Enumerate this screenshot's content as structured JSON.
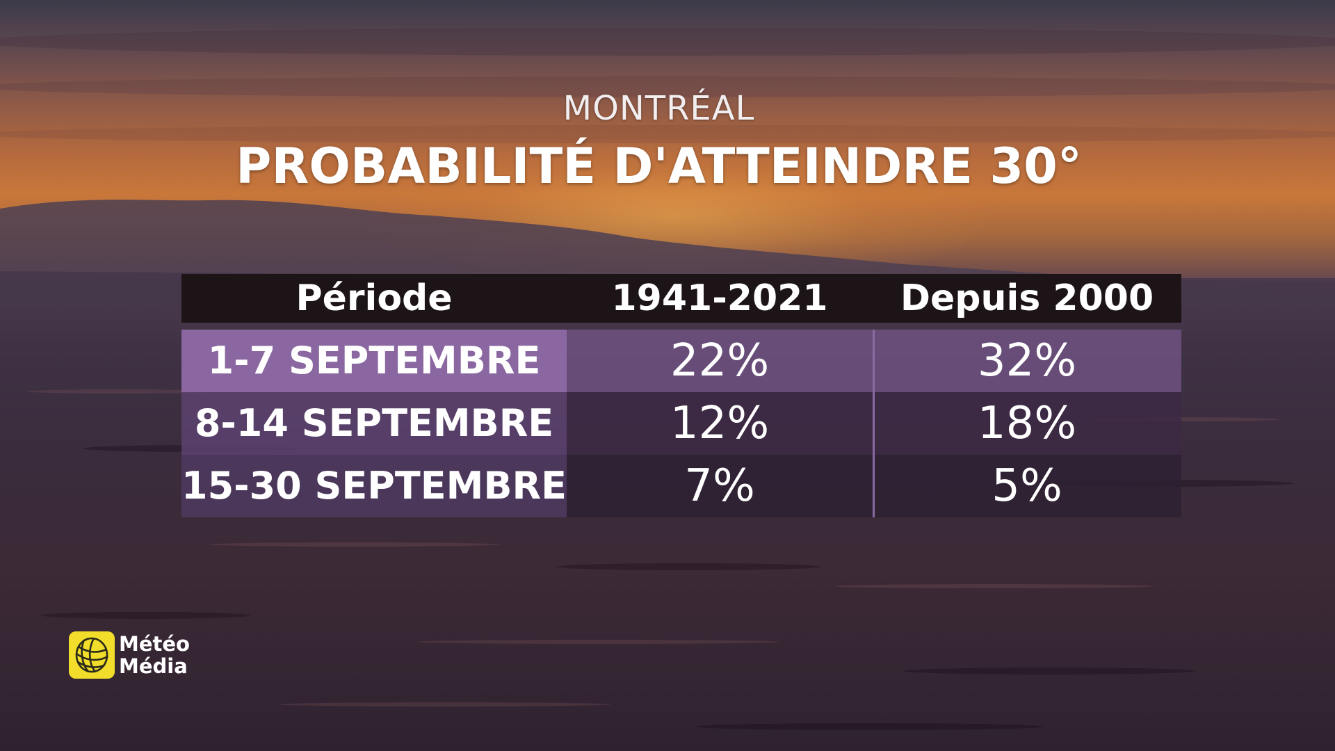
{
  "header": {
    "subtitle": "MONTRÉAL",
    "title": "PROBABILITÉ D'ATTEINDRE 30°"
  },
  "chart_data": {
    "type": "table",
    "columns": [
      "Période",
      "1941-2021",
      "Depuis 2000"
    ],
    "rows": [
      [
        "1-7 SEPTEMBRE",
        "22%",
        "32%"
      ],
      [
        "8-14 SEPTEMBRE",
        "12%",
        "18%"
      ],
      [
        "15-30 SEPTEMBRE",
        "7%",
        "5%"
      ]
    ],
    "series": [
      {
        "name": "1941-2021",
        "values": [
          22,
          12,
          7
        ]
      },
      {
        "name": "Depuis 2000",
        "values": [
          32,
          18,
          5
        ]
      }
    ],
    "highlight_row": 0
  },
  "logo": {
    "line1": "Météo",
    "line2": "Média"
  },
  "colors": {
    "highlight_row": "#8a67a0",
    "header_bg": "#1c1416",
    "divider": "#8b6ba3",
    "logo_yellow": "#f2dd2b"
  }
}
